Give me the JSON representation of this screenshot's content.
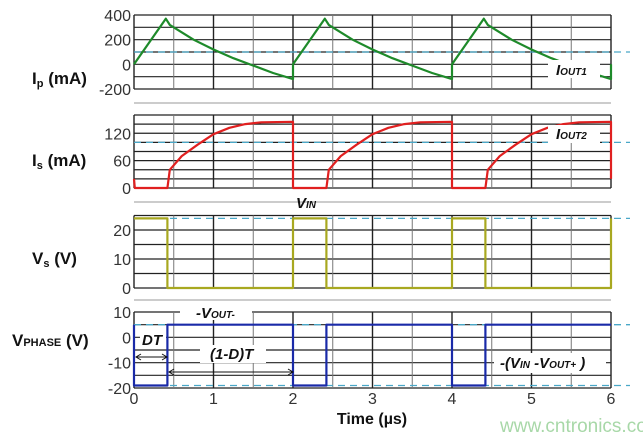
{
  "chart_data": [
    {
      "type": "line",
      "ylabel": {
        "main": "I",
        "sub": "p",
        "unit": " (mA)"
      },
      "ylim": [
        -200,
        400
      ],
      "grid_step": 100,
      "yticks": [
        400,
        200,
        0,
        -200
      ],
      "color": "#1e8a2a",
      "reference_line": {
        "value": 100,
        "label_main": "I",
        "label_sub": "OUT1",
        "color": "#4aa8c8"
      },
      "x": [
        0,
        0.4,
        0.45,
        0.75,
        1.0,
        1.25,
        1.5,
        1.75,
        2.0,
        2.0,
        2.4,
        2.45,
        2.75,
        3.0,
        3.25,
        3.5,
        3.75,
        4.0,
        4.0,
        4.4,
        4.45,
        4.75,
        5.0,
        5.25,
        5.5,
        5.75,
        6.0,
        6.0
      ],
      "y": [
        0,
        370,
        320,
        200,
        120,
        50,
        -10,
        -70,
        -120,
        0,
        370,
        320,
        200,
        120,
        50,
        -10,
        -70,
        -120,
        0,
        370,
        320,
        200,
        120,
        50,
        -10,
        -70,
        -120,
        0
      ]
    },
    {
      "type": "line",
      "ylabel": {
        "main": "I",
        "sub": "s",
        "unit": " (mA)"
      },
      "ylim": [
        0,
        160
      ],
      "grid_step": 20,
      "yticks": [
        120,
        60,
        0
      ],
      "color": "#e02020",
      "reference_line": {
        "value": 100,
        "label_main": "I",
        "label_sub": "OUT2",
        "color": "#4aa8c8"
      },
      "x": [
        0,
        0.01,
        0.42,
        0.45,
        0.6,
        0.8,
        1.0,
        1.2,
        1.4,
        1.6,
        2.0,
        2.0,
        2.42,
        2.45,
        2.6,
        2.8,
        3.0,
        3.2,
        3.4,
        3.6,
        4.0,
        4.0,
        4.42,
        4.45,
        4.6,
        4.8,
        5.0,
        5.2,
        5.4,
        5.6,
        6.0,
        6.0
      ],
      "y": [
        20,
        0,
        0,
        40,
        70,
        95,
        118,
        132,
        140,
        144,
        145,
        0,
        0,
        40,
        70,
        95,
        118,
        132,
        140,
        144,
        145,
        0,
        0,
        40,
        70,
        95,
        118,
        132,
        140,
        144,
        145,
        20
      ]
    },
    {
      "type": "line",
      "ylabel": {
        "main": "V",
        "sub": "s",
        "unit": " (V)"
      },
      "ylim": [
        0,
        25
      ],
      "grid_step": 5,
      "yticks": [
        20,
        10,
        0
      ],
      "color": "#a8a820",
      "reference_line": {
        "value": 24,
        "label_main": "V",
        "label_sub": "IN",
        "color": "#4aa8c8"
      },
      "x": [
        0,
        0.42,
        0.42,
        2.0,
        2.0,
        2.42,
        2.42,
        4.0,
        4.0,
        4.42,
        4.42,
        6.0,
        6.0
      ],
      "y": [
        24,
        24,
        0,
        0,
        24,
        24,
        0,
        0,
        24,
        24,
        0,
        0,
        24
      ]
    },
    {
      "type": "line",
      "ylabel": {
        "main": "V",
        "sub": "PHASE",
        "unit": " (V)"
      },
      "ylim": [
        -20,
        10
      ],
      "grid_step": 5,
      "yticks": [
        10,
        0,
        -10,
        -20
      ],
      "color": "#1a2aa8",
      "reference_lines": [
        {
          "value": 5,
          "color": "#4aa8c8"
        },
        {
          "value": -19,
          "color": "#4aa8c8"
        }
      ],
      "x": [
        0,
        0,
        0.42,
        0.42,
        2.0,
        2.0,
        2.42,
        2.42,
        4.0,
        4.0,
        4.42,
        4.42,
        6.0
      ],
      "y": [
        5,
        -19,
        -19,
        5,
        5,
        -19,
        -19,
        5,
        5,
        -19,
        -19,
        5,
        5
      ],
      "annotations": {
        "vout_minus": {
          "pre": "-V",
          "sub": "OUT-"
        },
        "dt": "DT",
        "one_minus_d_t": "(1-D)T",
        "vin_minus_vout": {
          "pre": "-(V",
          "sub1": "IN",
          "mid": " -V",
          "sub2": "OUT+",
          "post": " )"
        }
      },
      "xticks": [
        0,
        1,
        2,
        3,
        4,
        5,
        6
      ],
      "xlabel": "Time (µs)"
    }
  ],
  "xlim": [
    0,
    6
  ],
  "x_grid_step": 0.5,
  "watermark": "www.cntronics.com"
}
